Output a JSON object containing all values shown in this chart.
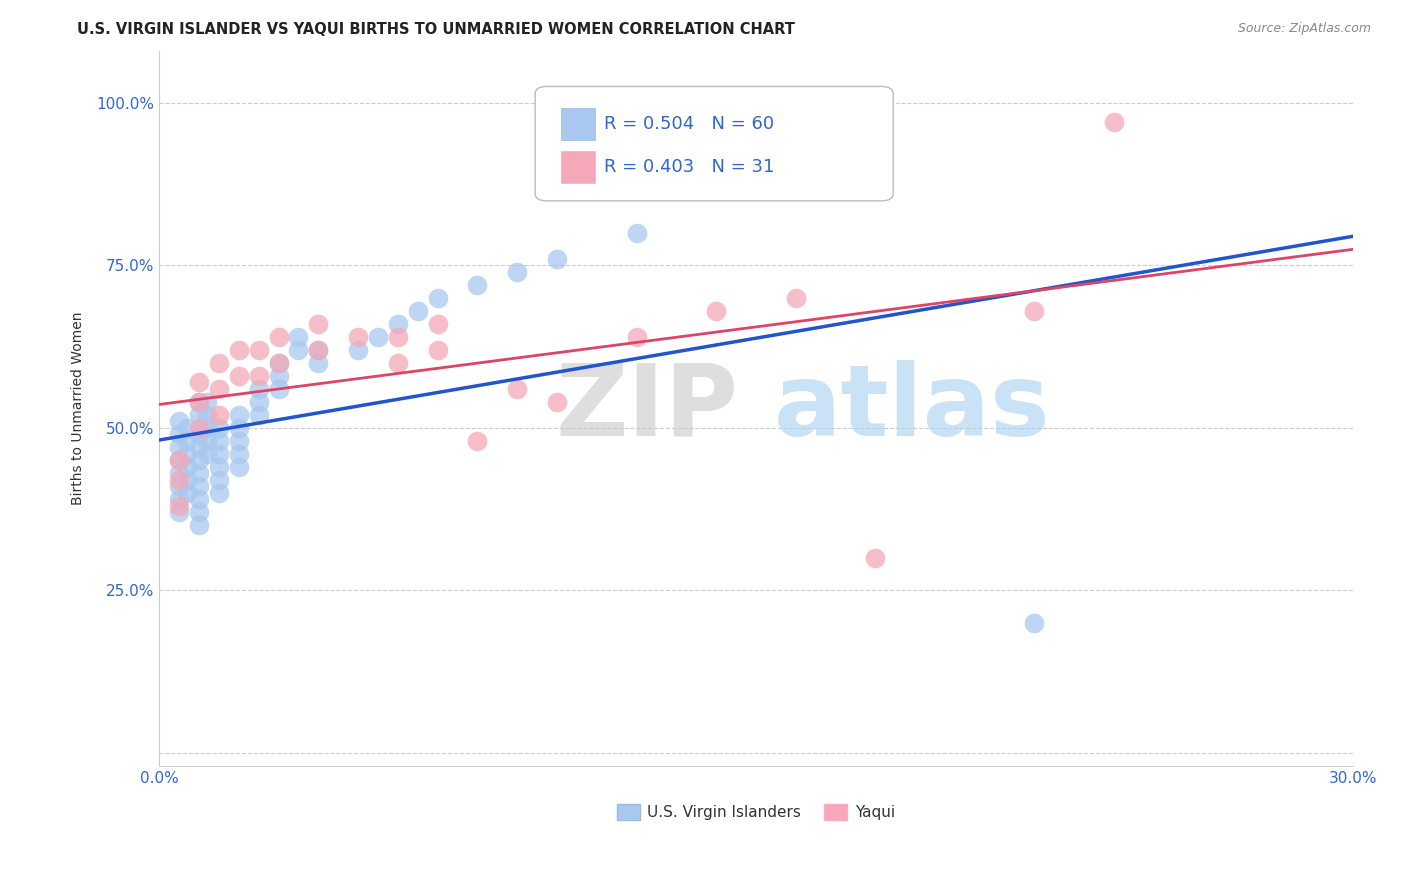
{
  "title": "U.S. VIRGIN ISLANDER VS YAQUI BIRTHS TO UNMARRIED WOMEN CORRELATION CHART",
  "source": "Source: ZipAtlas.com",
  "ylabel": "Births to Unmarried Women",
  "xlim": [
    0.0,
    0.3
  ],
  "ylim": [
    -0.02,
    1.08
  ],
  "xticks": [
    0.0,
    0.05,
    0.1,
    0.15,
    0.2,
    0.25,
    0.3
  ],
  "xticklabels": [
    "0.0%",
    "",
    "",
    "",
    "",
    "",
    "30.0%"
  ],
  "yticks": [
    0.0,
    0.25,
    0.5,
    0.75,
    1.0
  ],
  "yticklabels": [
    "",
    "25.0%",
    "50.0%",
    "75.0%",
    "100.0%"
  ],
  "blue_R": 0.504,
  "blue_N": 60,
  "pink_R": 0.403,
  "pink_N": 31,
  "blue_color": "#a8c8f0",
  "pink_color": "#f4a8b8",
  "blue_line_color": "#2255cc",
  "pink_line_color": "#dd4466",
  "watermark_zip": "ZIP",
  "watermark_atlas": "atlas",
  "legend_label_blue": "U.S. Virgin Islanders",
  "legend_label_pink": "Yaqui",
  "blue_scatter_x": [
    0.005,
    0.005,
    0.005,
    0.005,
    0.005,
    0.005,
    0.005,
    0.005,
    0.007,
    0.007,
    0.007,
    0.007,
    0.007,
    0.007,
    0.01,
    0.01,
    0.01,
    0.01,
    0.01,
    0.01,
    0.01,
    0.01,
    0.01,
    0.01,
    0.012,
    0.012,
    0.012,
    0.012,
    0.012,
    0.015,
    0.015,
    0.015,
    0.015,
    0.015,
    0.015,
    0.02,
    0.02,
    0.02,
    0.02,
    0.02,
    0.025,
    0.025,
    0.025,
    0.03,
    0.03,
    0.03,
    0.035,
    0.035,
    0.04,
    0.04,
    0.05,
    0.055,
    0.06,
    0.065,
    0.07,
    0.08,
    0.09,
    0.1,
    0.12,
    0.22
  ],
  "blue_scatter_y": [
    0.37,
    0.39,
    0.41,
    0.43,
    0.45,
    0.47,
    0.49,
    0.51,
    0.4,
    0.42,
    0.44,
    0.46,
    0.48,
    0.5,
    0.35,
    0.37,
    0.39,
    0.41,
    0.43,
    0.45,
    0.47,
    0.49,
    0.52,
    0.54,
    0.46,
    0.48,
    0.5,
    0.52,
    0.54,
    0.4,
    0.42,
    0.44,
    0.46,
    0.48,
    0.5,
    0.44,
    0.46,
    0.48,
    0.5,
    0.52,
    0.52,
    0.54,
    0.56,
    0.56,
    0.58,
    0.6,
    0.62,
    0.64,
    0.6,
    0.62,
    0.62,
    0.64,
    0.66,
    0.68,
    0.7,
    0.72,
    0.74,
    0.76,
    0.8,
    0.2
  ],
  "pink_scatter_x": [
    0.005,
    0.005,
    0.005,
    0.01,
    0.01,
    0.01,
    0.015,
    0.015,
    0.015,
    0.02,
    0.02,
    0.025,
    0.025,
    0.03,
    0.03,
    0.04,
    0.04,
    0.05,
    0.06,
    0.06,
    0.07,
    0.07,
    0.08,
    0.09,
    0.1,
    0.12,
    0.14,
    0.16,
    0.18,
    0.22,
    0.24
  ],
  "pink_scatter_y": [
    0.38,
    0.42,
    0.45,
    0.5,
    0.54,
    0.57,
    0.52,
    0.56,
    0.6,
    0.58,
    0.62,
    0.58,
    0.62,
    0.6,
    0.64,
    0.62,
    0.66,
    0.64,
    0.6,
    0.64,
    0.62,
    0.66,
    0.48,
    0.56,
    0.54,
    0.64,
    0.68,
    0.7,
    0.3,
    0.68,
    0.97
  ],
  "grid_color": "#cccccc",
  "title_fontsize": 10.5,
  "tick_color": "#3366cc",
  "axis_label_color": "#333333"
}
